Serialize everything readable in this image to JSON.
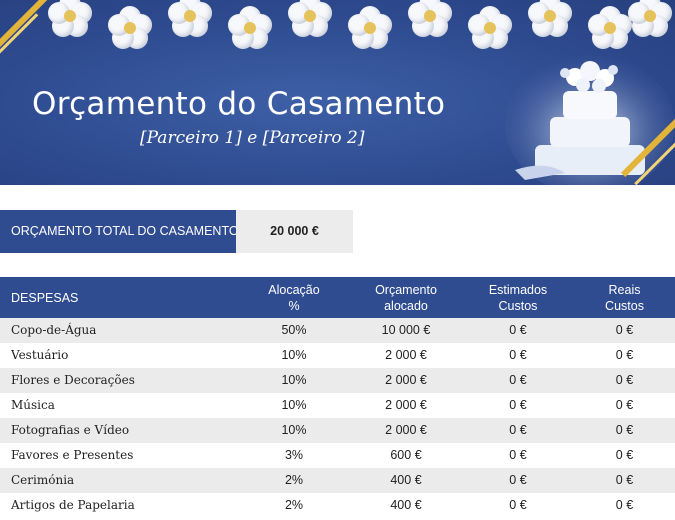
{
  "banner": {
    "title": "Orçamento do Casamento",
    "subtitle": "[Parceiro 1] e [Parceiro 2]"
  },
  "total": {
    "label": "ORÇAMENTO TOTAL DO CASAMENTO",
    "value": "20 000 €"
  },
  "table": {
    "headers": [
      {
        "l1": "DESPESAS",
        "l2": ""
      },
      {
        "l1": "Alocação",
        "l2": "%"
      },
      {
        "l1": "Orçamento",
        "l2": "alocado"
      },
      {
        "l1": "Estimados",
        "l2": "Custos"
      },
      {
        "l1": "Reais",
        "l2": "Custos"
      }
    ],
    "rows": [
      {
        "name": "Copo-de-Água",
        "alloc": "50%",
        "budget": "10 000 €",
        "estimated": "0 €",
        "actual": "0 €"
      },
      {
        "name": "Vestuário",
        "alloc": "10%",
        "budget": "2 000 €",
        "estimated": "0 €",
        "actual": "0 €"
      },
      {
        "name": "Flores e Decorações",
        "alloc": "10%",
        "budget": "2 000 €",
        "estimated": "0 €",
        "actual": "0 €"
      },
      {
        "name": "Música",
        "alloc": "10%",
        "budget": "2 000 €",
        "estimated": "0 €",
        "actual": "0 €"
      },
      {
        "name": "Fotografias e Vídeo",
        "alloc": "10%",
        "budget": "2 000 €",
        "estimated": "0 €",
        "actual": "0 €"
      },
      {
        "name": "Favores e Presentes",
        "alloc": "3%",
        "budget": "600 €",
        "estimated": "0 €",
        "actual": "0 €"
      },
      {
        "name": "Cerimónia",
        "alloc": "2%",
        "budget": "400 €",
        "estimated": "0 €",
        "actual": "0 €"
      },
      {
        "name": "Artigos de Papelaria",
        "alloc": "2%",
        "budget": "400 €",
        "estimated": "0 €",
        "actual": "0 €"
      }
    ]
  },
  "colors": {
    "accent": "#2f4c91",
    "stripe": "#ebebeb",
    "gold": "#e3b43a"
  }
}
